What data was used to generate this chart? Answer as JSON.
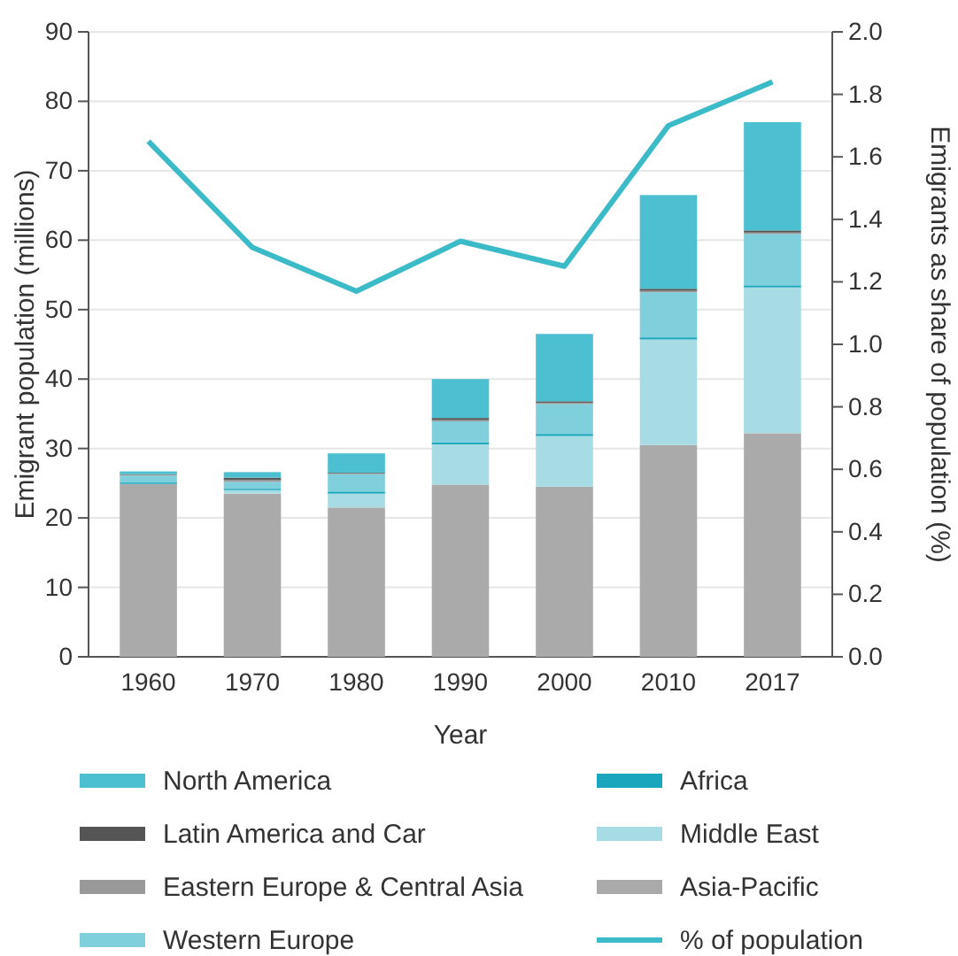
{
  "chart_data": {
    "type": "bar",
    "stacked": true,
    "xlabel": "Year",
    "ylabel": "Emigrant population (millions)",
    "y2label": "Emigrants as share of population (%)",
    "categories": [
      "1960",
      "1970",
      "1980",
      "1990",
      "2000",
      "2010",
      "2017"
    ],
    "series": [
      {
        "name": "Asia-Pacific",
        "color": "#aaaaaa",
        "values": [
          24.9,
          23.5,
          21.5,
          24.8,
          24.5,
          30.5,
          32.2
        ]
      },
      {
        "name": "Middle East",
        "color": "#a8dce4",
        "values": [
          null,
          0.5,
          2.0,
          5.8,
          7.3,
          15.2,
          21.0
        ]
      },
      {
        "name": "Africa",
        "color": "#1aa7bd",
        "values": [
          0.2,
          0.2,
          0.3,
          0.3,
          0.3,
          0.3,
          0.3
        ]
      },
      {
        "name": "Western Europe",
        "color": "#7fd0dc",
        "values": [
          1.0,
          1.0,
          2.5,
          3.0,
          4.3,
          6.5,
          7.4
        ]
      },
      {
        "name": "Eastern Europe & Central Asia",
        "color": "#999999",
        "values": [
          0.1,
          0.3,
          0.1,
          0.2,
          0.2,
          0.2,
          0.2
        ]
      },
      {
        "name": "Latin America and Car",
        "color": "#555555",
        "values": [
          0.1,
          0.3,
          0.1,
          0.3,
          0.2,
          0.3,
          0.3
        ]
      },
      {
        "name": "North America",
        "color": "#4cc0d0",
        "values": [
          0.4,
          0.8,
          2.8,
          5.6,
          9.7,
          13.5,
          15.6
        ]
      },
      {
        "name": "% of population",
        "type": "line",
        "axis": "y2",
        "color": "#3bbac7",
        "values": [
          1.65,
          1.31,
          1.17,
          1.33,
          1.25,
          1.7,
          1.84
        ]
      }
    ],
    "ylim": [
      0,
      90
    ],
    "yticks": [
      0,
      10,
      20,
      30,
      40,
      50,
      60,
      70,
      80,
      90
    ],
    "y2lim": [
      0,
      2
    ],
    "y2ticks": [
      {
        "value": 0,
        "label": "0.0"
      },
      {
        "value": 0.2,
        "label": "0.2"
      },
      {
        "value": 0.4,
        "label": "0.4"
      },
      {
        "value": 0.6,
        "label": "0.6"
      },
      {
        "value": 0.8,
        "label": "0.8"
      },
      {
        "value": 1,
        "label": "1.0"
      },
      {
        "value": 1.2,
        "label": "1.2"
      },
      {
        "value": 1.4,
        "label": "1.4"
      },
      {
        "value": 1.6,
        "label": "1.6"
      },
      {
        "value": 1.8,
        "label": "1.8"
      },
      {
        "value": 2,
        "label": "2.0"
      }
    ],
    "grid": "y",
    "legend": "bottom",
    "marker": "none",
    "line_style": "solid"
  }
}
